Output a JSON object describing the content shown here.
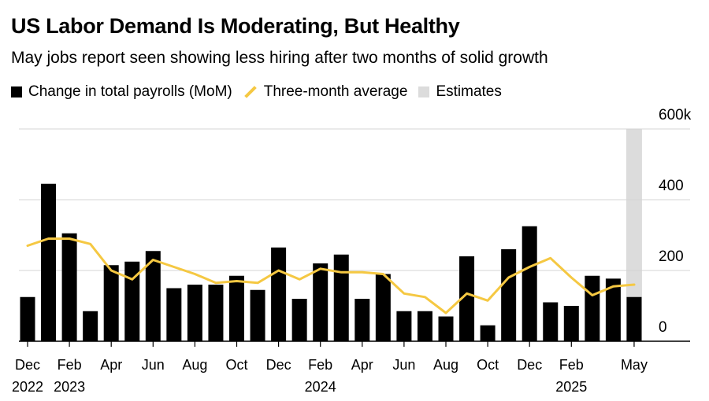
{
  "title": "US Labor Demand Is Moderating, But Healthy",
  "subtitle": "May jobs report seen showing less hiring after two months of solid growth",
  "legend": {
    "bars": "Change in total payrolls (MoM)",
    "line": "Three-month average",
    "estimates": "Estimates"
  },
  "colors": {
    "bars": "#000000",
    "line": "#f5c842",
    "estimates": "#dcdcdc",
    "grid": "#d4d4d4"
  },
  "chart_data": {
    "type": "bar",
    "title": "US Labor Demand Is Moderating, But Healthy",
    "xlabel": "",
    "ylabel": "",
    "ylim": [
      0,
      600
    ],
    "yticks": [
      0,
      200,
      400,
      600
    ],
    "ytick_labels": [
      "0",
      "200",
      "400",
      "600k"
    ],
    "categories": [
      "Dec 2022",
      "Jan 2023",
      "Feb 2023",
      "Mar 2023",
      "Apr 2023",
      "May 2023",
      "Jun 2023",
      "Jul 2023",
      "Aug 2023",
      "Sep 2023",
      "Oct 2023",
      "Nov 2023",
      "Dec 2023",
      "Jan 2024",
      "Feb 2024",
      "Mar 2024",
      "Apr 2024",
      "May 2024",
      "Jun 2024",
      "Jul 2024",
      "Aug 2024",
      "Sep 2024",
      "Oct 2024",
      "Nov 2024",
      "Dec 2024",
      "Jan 2025",
      "Feb 2025",
      "Mar 2025",
      "Apr 2025",
      "May 2025"
    ],
    "x_tick_labels": [
      {
        "index": 0,
        "month": "Dec",
        "year": "2022"
      },
      {
        "index": 2,
        "month": "Feb",
        "year": "2023"
      },
      {
        "index": 4,
        "month": "Apr",
        "year": ""
      },
      {
        "index": 6,
        "month": "Jun",
        "year": ""
      },
      {
        "index": 8,
        "month": "Aug",
        "year": ""
      },
      {
        "index": 10,
        "month": "Oct",
        "year": ""
      },
      {
        "index": 12,
        "month": "Dec",
        "year": ""
      },
      {
        "index": 14,
        "month": "Feb",
        "year": "2024"
      },
      {
        "index": 16,
        "month": "Apr",
        "year": ""
      },
      {
        "index": 18,
        "month": "Jun",
        "year": ""
      },
      {
        "index": 20,
        "month": "Aug",
        "year": ""
      },
      {
        "index": 22,
        "month": "Oct",
        "year": ""
      },
      {
        "index": 24,
        "month": "Dec",
        "year": ""
      },
      {
        "index": 26,
        "month": "Feb",
        "year": "2025"
      },
      {
        "index": 29,
        "month": "May",
        "year": ""
      }
    ],
    "series": [
      {
        "name": "Change in total payrolls (MoM)",
        "type": "bar",
        "values": [
          125,
          445,
          305,
          85,
          215,
          225,
          255,
          150,
          160,
          160,
          185,
          145,
          265,
          120,
          220,
          245,
          120,
          190,
          85,
          85,
          70,
          240,
          45,
          260,
          325,
          110,
          100,
          185,
          177,
          125
        ]
      },
      {
        "name": "Three-month average",
        "type": "line",
        "values": [
          270,
          290,
          290,
          275,
          200,
          175,
          230,
          210,
          190,
          165,
          170,
          165,
          200,
          175,
          205,
          195,
          195,
          190,
          135,
          125,
          80,
          135,
          115,
          180,
          210,
          235,
          180,
          130,
          155,
          160
        ]
      }
    ],
    "estimates": {
      "label": "Estimates",
      "category": "May 2025"
    }
  }
}
